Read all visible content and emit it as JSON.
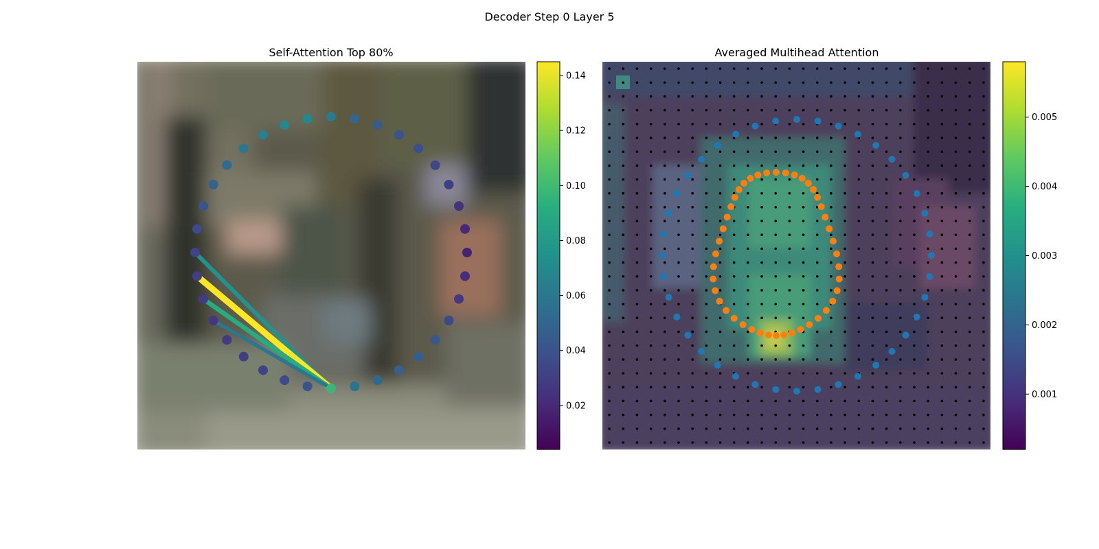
{
  "figure": {
    "title": "Decoder Step 0 Layer 5"
  },
  "chart_data": [
    {
      "type": "scatter",
      "title": "Self-Attention Top 80%",
      "description_of_background": "blurred street photo",
      "colormap": "viridis",
      "colorbar": {
        "ticks": [
          "0.02",
          "0.04",
          "0.06",
          "0.08",
          "0.10",
          "0.12",
          "0.14"
        ],
        "range": [
          0.004,
          0.145
        ]
      },
      "query_point_index": 0,
      "points": {
        "count": 36,
        "values": [
          0.098,
          0.058,
          0.052,
          0.048,
          0.046,
          0.042,
          0.035,
          0.028,
          0.022,
          0.018,
          0.02,
          0.024,
          0.03,
          0.034,
          0.038,
          0.04,
          0.044,
          0.05,
          0.062,
          0.07,
          0.068,
          0.064,
          0.06,
          0.054,
          0.048,
          0.04,
          0.036,
          0.032,
          0.03,
          0.028,
          0.026,
          0.028,
          0.03,
          0.032,
          0.036,
          0.04
        ]
      },
      "attention_lines": [
        {
          "to_index": 27,
          "value": 0.075
        },
        {
          "to_index": 28,
          "value": 0.145
        },
        {
          "to_index": 29,
          "value": 0.09
        },
        {
          "to_index": 30,
          "value": 0.06
        }
      ]
    },
    {
      "type": "heatmap",
      "title": "Averaged Multihead Attention",
      "colormap": "viridis",
      "colorbar": {
        "ticks": [
          "0.001",
          "0.002",
          "0.003",
          "0.004",
          "0.005"
        ],
        "range": [
          0.0002,
          0.0058
        ]
      },
      "grid_size": 28,
      "series": [
        {
          "name": "",
          "color": "#1f77b4",
          "marker": "outer ring of reference points"
        },
        {
          "name": "",
          "color": "#ff7f0e",
          "marker": "sampled attention points"
        }
      ],
      "points_color_dark": "#000000"
    }
  ]
}
